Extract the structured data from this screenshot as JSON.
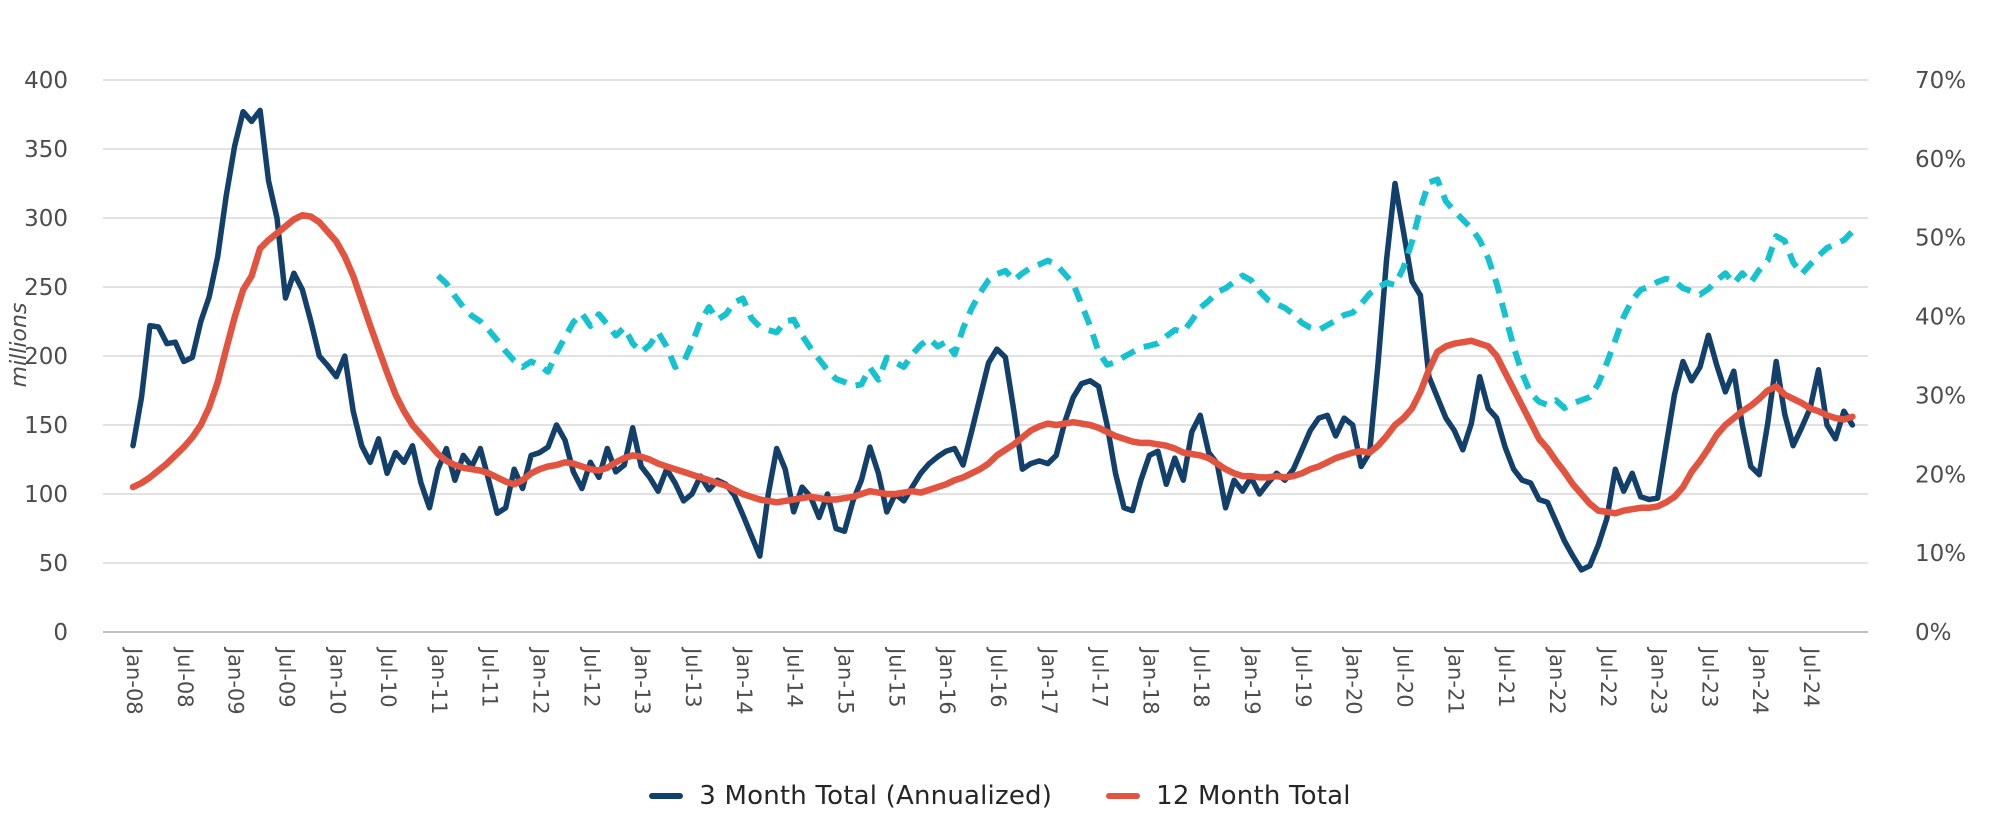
{
  "colors": {
    "background": "#ffffff",
    "gridline": "#d9d9d9",
    "baseline": "#c0c0c0",
    "tick_text": "#4d4d4d",
    "legend_text": "#262626",
    "series_navy": "#13406a",
    "series_red": "#e2543f",
    "series_cyan": "#14c3cf"
  },
  "legend": {
    "items": [
      {
        "label": "3 Month Total (Annualized)",
        "color": "#13406a"
      },
      {
        "label": "12 Month Total",
        "color": "#e2543f"
      }
    ]
  },
  "chart_data": {
    "type": "line",
    "title": "",
    "xlabel": "",
    "grid": true,
    "legend_position": "bottom",
    "months_start": "Jan-08",
    "months_count": 204,
    "x_tick_labels": [
      "Jan-08",
      "Jul-08",
      "Jan-09",
      "Jul-09",
      "Jan-10",
      "Jul-10",
      "Jan-11",
      "Jul-11",
      "Jan-12",
      "Jul-12",
      "Jan-13",
      "Jul-13",
      "Jan-14",
      "Jul-14",
      "Jan-15",
      "Jul-15",
      "Jan-16",
      "Jul-16",
      "Jan-17",
      "Jul-17",
      "Jan-18",
      "Jul-18",
      "Jan-19",
      "Jul-19",
      "Jan-20",
      "Jul-20",
      "Jan-21",
      "Jul-21",
      "Jan-22",
      "Jul-22",
      "Jan-23",
      "Jul-23",
      "Jan-24",
      "Jul-24"
    ],
    "left_axis": {
      "title": "millions",
      "min": 0,
      "max": 400,
      "tick_step": 50,
      "tick_labels": [
        "0",
        "50",
        "100",
        "150",
        "200",
        "250",
        "300",
        "350",
        "400"
      ]
    },
    "right_axis": {
      "min": 0,
      "max": 70,
      "tick_step": 10,
      "tick_labels": [
        "0%",
        "10%",
        "20%",
        "30%",
        "40%",
        "50%",
        "60%",
        "70%"
      ]
    },
    "series": [
      {
        "name": "3 Month Total (Annualized)",
        "axis": "left",
        "style": "solid",
        "color": "#13406a",
        "values": [
          135,
          170,
          222,
          221,
          209,
          210,
          196,
          199,
          225,
          243,
          272,
          316,
          352,
          377,
          370,
          378,
          327,
          300,
          242,
          260,
          248,
          225,
          200,
          193,
          185,
          200,
          160,
          135,
          123,
          140,
          115,
          130,
          123,
          135,
          108,
          90,
          118,
          133,
          110,
          128,
          120,
          133,
          110,
          86,
          90,
          118,
          104,
          128,
          130,
          134,
          150,
          139,
          116,
          104,
          123,
          112,
          133,
          116,
          121,
          148,
          120,
          112,
          102,
          118,
          108,
          95,
          100,
          113,
          103,
          110,
          107,
          99,
          85,
          70,
          55,
          100,
          133,
          118,
          87,
          105,
          98,
          83,
          100,
          75,
          73,
          95,
          110,
          134,
          115,
          87,
          100,
          95,
          105,
          115,
          122,
          127,
          131,
          133,
          121,
          145,
          170,
          195,
          205,
          199,
          160,
          118,
          122,
          124,
          122,
          128,
          152,
          170,
          180,
          182,
          178,
          150,
          115,
          90,
          88,
          110,
          128,
          131,
          107,
          126,
          110,
          145,
          157,
          130,
          122,
          90,
          110,
          102,
          112,
          100,
          108,
          115,
          110,
          118,
          132,
          146,
          155,
          157,
          142,
          155,
          150,
          120,
          130,
          195,
          270,
          325,
          290,
          254,
          244,
          185,
          170,
          155,
          146,
          132,
          151,
          185,
          162,
          155,
          134,
          118,
          110,
          108,
          96,
          94,
          80,
          66,
          55,
          45,
          48,
          63,
          82,
          118,
          102,
          115,
          98,
          96,
          97,
          135,
          172,
          196,
          182,
          192,
          215,
          193,
          174,
          189,
          150,
          120,
          114,
          151,
          196,
          158,
          135,
          148,
          162,
          190,
          150,
          140,
          160,
          150
        ]
      },
      {
        "name": "12 Month Total",
        "axis": "left",
        "style": "solid",
        "color": "#e2543f",
        "values": [
          105,
          108,
          112,
          117,
          122,
          128,
          134,
          141,
          150,
          163,
          181,
          205,
          228,
          248,
          258,
          278,
          284,
          289,
          294,
          299,
          302,
          301,
          297,
          290,
          283,
          272,
          258,
          240,
          222,
          205,
          188,
          172,
          160,
          150,
          143,
          136,
          129,
          124,
          121,
          119,
          118,
          117,
          115,
          112,
          109,
          107,
          110,
          115,
          118,
          120,
          121,
          123,
          122,
          120,
          118,
          117,
          119,
          123,
          126,
          128,
          127,
          125,
          122,
          120,
          118,
          116,
          114,
          112,
          110,
          108,
          106,
          103,
          100,
          98,
          96,
          95,
          94,
          95,
          96,
          97,
          98,
          97,
          96,
          96,
          97,
          98,
          100,
          102,
          101,
          100,
          100,
          101,
          102,
          101,
          103,
          105,
          107,
          110,
          112,
          115,
          118,
          122,
          128,
          132,
          136,
          141,
          146,
          149,
          151,
          150,
          151,
          152,
          151,
          150,
          148,
          145,
          142,
          140,
          138,
          137,
          137,
          136,
          135,
          133,
          130,
          129,
          128,
          126,
          122,
          118,
          115,
          113,
          113,
          112,
          112,
          113,
          112,
          113,
          115,
          118,
          120,
          123,
          126,
          128,
          130,
          131,
          130,
          135,
          142,
          150,
          155,
          162,
          174,
          190,
          203,
          207,
          209,
          210,
          211,
          209,
          207,
          200,
          188,
          176,
          164,
          152,
          140,
          133,
          124,
          116,
          107,
          100,
          93,
          88,
          87,
          86,
          88,
          89,
          90,
          90,
          91,
          94,
          98,
          105,
          116,
          124,
          133,
          143,
          150,
          155,
          160,
          164,
          169,
          175,
          178,
          172,
          169,
          166,
          162,
          160,
          157,
          155,
          154,
          156
        ]
      },
      {
        "name": "",
        "axis": "right",
        "style": "dashed",
        "color": "#14c3cf",
        "values": [
          null,
          null,
          null,
          null,
          null,
          null,
          null,
          null,
          null,
          null,
          null,
          null,
          null,
          null,
          null,
          null,
          null,
          null,
          null,
          null,
          null,
          null,
          null,
          null,
          null,
          null,
          null,
          null,
          null,
          null,
          null,
          null,
          null,
          null,
          null,
          null,
          45.2,
          44.2,
          42.6,
          41.2,
          40.1,
          39.4,
          38.3,
          37,
          35.6,
          34.4,
          33.6,
          34.3,
          33.8,
          33,
          35.4,
          37.4,
          39.3,
          40.4,
          38.8,
          40.3,
          39,
          37.6,
          38.6,
          36.6,
          35.5,
          36.4,
          38,
          36.2,
          33.6,
          34.2,
          36.6,
          39.4,
          41.2,
          39.6,
          40.3,
          41.8,
          42.3,
          39.8,
          38.7,
          38.3,
          38,
          39.4,
          39.6,
          37.6,
          36,
          34.6,
          33.2,
          32.1,
          31.7,
          31.2,
          31.4,
          33.5,
          32,
          34.8,
          34.2,
          33.6,
          35.2,
          36.4,
          37.2,
          36.2,
          36.8,
          35.2,
          38.5,
          41,
          43,
          44.6,
          45.4,
          45.8,
          44.6,
          45.5,
          46.2,
          46.6,
          47.1,
          46.6,
          45.4,
          44.2,
          41.5,
          38.8,
          35.5,
          33.9,
          34.2,
          34.9,
          35.5,
          36.1,
          36.3,
          36.6,
          37.5,
          38.3,
          38.1,
          39.5,
          41.1,
          42,
          43.1,
          43.6,
          44.4,
          45.2,
          44.6,
          43.2,
          42.1,
          41.6,
          41.1,
          40.3,
          39.2,
          38.6,
          38.3,
          38.9,
          39.5,
          40.2,
          40.5,
          41.6,
          42.9,
          43.7,
          44.3,
          44,
          46.2,
          49.5,
          53.7,
          57,
          57.4,
          54.6,
          53.4,
          52.3,
          51.2,
          49.7,
          47.4,
          44.2,
          40.2,
          36.2,
          32.8,
          30.3,
          29.2,
          28.8,
          29.4,
          28.4,
          29,
          29.4,
          29.8,
          31.5,
          34.1,
          37,
          40,
          42.1,
          43.4,
          43.8,
          44.4,
          44.8,
          44.5,
          43.6,
          43.2,
          42.8,
          43.5,
          44.6,
          45.5,
          44.2,
          45.5,
          44.3,
          45.9,
          47.1,
          50.2,
          49.6,
          46.9,
          45.4,
          46.6,
          47.7,
          48.7,
          49.2,
          49.7,
          50.8
        ]
      }
    ]
  }
}
